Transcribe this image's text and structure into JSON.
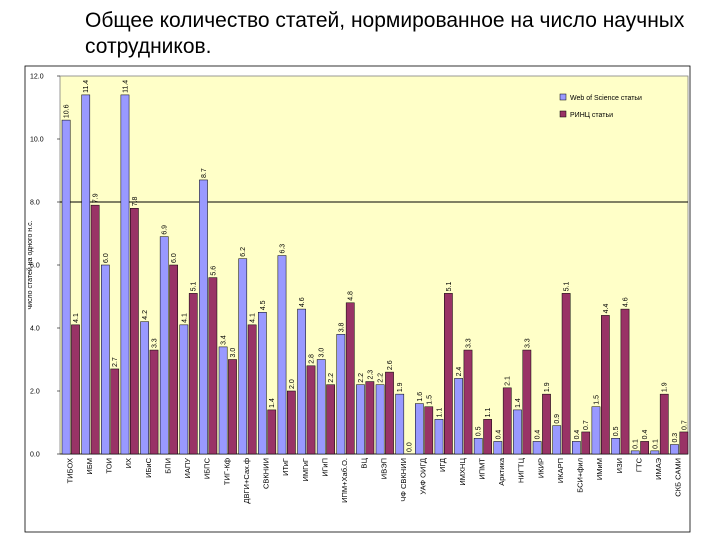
{
  "title": "Общее количество статей, нормированное на число научных сотрудников.",
  "chart_data": {
    "type": "bar",
    "title": "Общее количество статей, нормированное на число научных сотрудников.",
    "ylabel": "число статей на одного н.с.",
    "xlabel": "",
    "ylim": [
      0,
      12
    ],
    "yticks": [
      "0.0",
      "2.0",
      "4.0",
      "6.0",
      "8.0",
      "10.0",
      "12.0"
    ],
    "reference_line": 8.0,
    "legend_position": "top-right",
    "colors": {
      "wos": "#9999ff",
      "rinc": "#993366",
      "plot_bg": "#ffffc8",
      "ref_line": "#000000"
    },
    "categories": [
      "ТИБОХ",
      "ИБМ",
      "ТОИ",
      "ИХ",
      "ИБиС",
      "БПИ",
      "ИАПУ",
      "ИБПС",
      "ТИГ-Кф",
      "ДВГИ+Сах.ф",
      "СВКНИИ",
      "ИТиГ",
      "ИМГиГ",
      "ИГиП",
      "ИПМ+Хаб.О.",
      "ВЦ",
      "ИВЭП",
      "ЧФ СВКНИИ",
      "УАФ ОИГД",
      "ИГД",
      "ИМХНЦ",
      "ИПМТ",
      "Арктика",
      "НИГТЦ",
      "ИКИР",
      "ИКАРП",
      "БСИ+фил",
      "ИМиМ",
      "ИЗИ",
      "ГТС",
      "ИМАЭ",
      "СКБ САМИ"
    ],
    "series": [
      {
        "name": "Web of Science статьи",
        "values": [
          10.6,
          11.4,
          6.0,
          11.4,
          4.2,
          6.9,
          4.1,
          8.7,
          3.4,
          6.2,
          4.5,
          6.3,
          4.6,
          3.0,
          3.8,
          2.2,
          2.2,
          1.9,
          1.6,
          1.1,
          2.4,
          0.5,
          0.4,
          1.4,
          0.4,
          0.9,
          0.4,
          1.5,
          0.5,
          0.1,
          0.1,
          0.3
        ],
        "labels": [
          "10.6",
          "11.4",
          "6.0",
          "11.4",
          "4.2",
          "6.9",
          "4.1",
          "8.7",
          "3.4",
          "6.2",
          "4.5",
          "6.3",
          "4.6",
          "3.0",
          "3.8",
          "2.2",
          "2.2",
          "1.9",
          "1.6",
          "1.1",
          "2.4",
          "0.5",
          "0.4",
          "1.4",
          "0.4",
          "0.9",
          "0.4",
          "1.5",
          "0.5",
          "0.1",
          "0.1",
          "0.3"
        ]
      },
      {
        "name": "РИНЦ статьи",
        "values": [
          4.1,
          7.9,
          2.7,
          7.8,
          3.3,
          6.0,
          5.1,
          5.6,
          3.0,
          4.1,
          1.4,
          2.0,
          2.8,
          2.2,
          4.8,
          2.3,
          2.6,
          0.0,
          1.5,
          5.1,
          3.3,
          1.1,
          2.1,
          3.3,
          1.9,
          5.1,
          0.7,
          4.4,
          4.6,
          0.4,
          1.9,
          0.7
        ],
        "labels": [
          "4.1",
          "7.9",
          "2.7",
          "7.8",
          "3.3",
          "6.0",
          "5.1",
          "5.6",
          "3.0",
          "4.1",
          "1.4",
          "2.0",
          "2.8",
          "2.2",
          "4.8",
          "2.3",
          "2.6",
          "0.0",
          "1.5",
          "5.1",
          "3.3",
          "1.1",
          "2.1",
          "3.3",
          "1.9",
          "5.1",
          "0.7",
          "4.4",
          "4.6",
          "0.4",
          "1.9",
          "0.7"
        ]
      }
    ]
  }
}
